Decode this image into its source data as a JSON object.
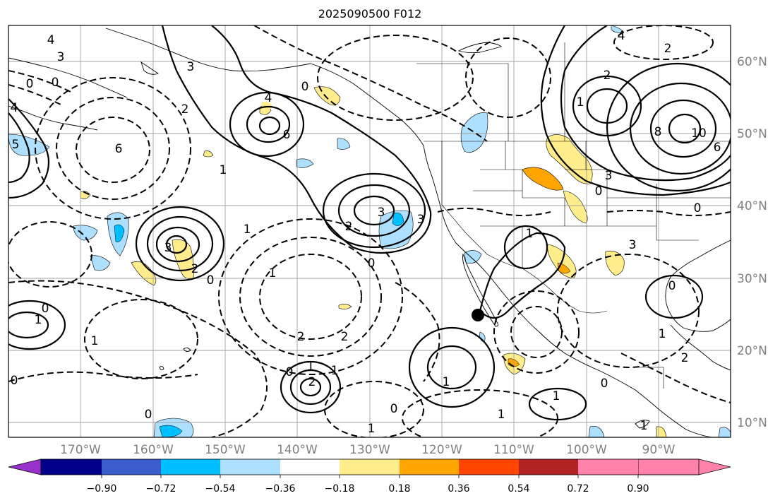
{
  "title": "2025090500 F012",
  "lon_labels": [
    "170°W",
    "160°W",
    "150°W",
    "140°W",
    "130°W",
    "120°W",
    "110°W",
    "100°W",
    "90°W"
  ],
  "lat_labels": [
    "60°N",
    "50°N",
    "40°N",
    "30°N",
    "20°N",
    "10°N"
  ],
  "colorbar": {
    "ticks": [
      "−0.90",
      "−0.72",
      "−0.54",
      "−0.36",
      "−0.18",
      "0.18",
      "0.36",
      "0.54",
      "0.72",
      "0.90"
    ],
    "colors": [
      "#9932CC",
      "#00008B",
      "#3A5FCD",
      "#00BFFF",
      "#ADDFFF",
      "#FFFFFF",
      "#FFEC8B",
      "#FFA500",
      "#FF4500",
      "#B22222",
      "#FF82AB"
    ]
  },
  "contour_labels": [
    "4",
    "3",
    "0",
    "0",
    "4",
    "5",
    "6",
    "3",
    "4",
    "0",
    "6",
    "1",
    "2",
    "3",
    "2",
    "1",
    "3",
    "2",
    "0",
    "1",
    "2",
    "2",
    "1",
    "0",
    "0",
    "1",
    "0",
    "1",
    "2",
    "1",
    "0",
    "1",
    "0",
    "0",
    "1",
    "3",
    "1",
    "1",
    "4",
    "2",
    "8",
    "10",
    "6",
    "1",
    "2",
    "3",
    "0",
    "0",
    "3",
    "0",
    "1",
    "2",
    "0",
    "1",
    "1"
  ],
  "marker": "storm-center",
  "colors": {
    "positive_contour": "#000000",
    "negative_contour": "#000000",
    "grid": "#a0a0a0",
    "land_outline": "#000000"
  }
}
